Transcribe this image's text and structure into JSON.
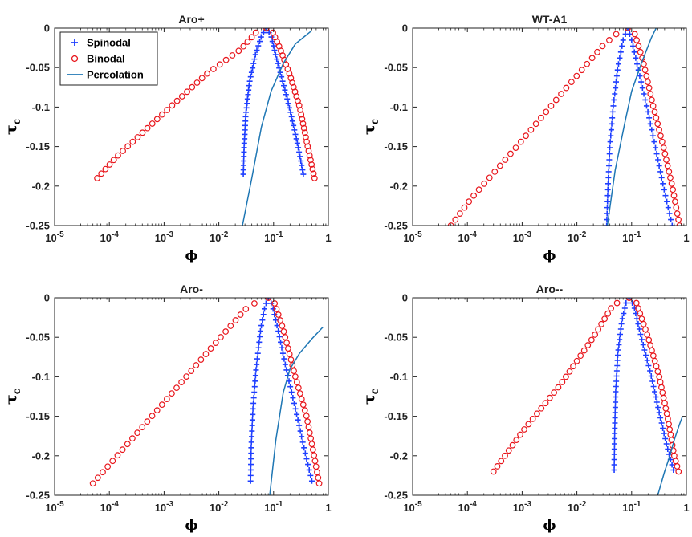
{
  "chart_data": [
    {
      "type": "scatter",
      "title": "Aro+",
      "xlabel": "ϕ",
      "ylabel": "τ",
      "ylabel_sub": "c",
      "xscale": "log",
      "xlim": [
        1e-05,
        1
      ],
      "ylim": [
        -0.25,
        0
      ],
      "xticks": [
        {
          "v": 1e-05,
          "base": "10",
          "exp": "-5"
        },
        {
          "v": 0.0001,
          "base": "10",
          "exp": "-4"
        },
        {
          "v": 0.001,
          "base": "10",
          "exp": "-3"
        },
        {
          "v": 0.01,
          "base": "10",
          "exp": "-2"
        },
        {
          "v": 0.1,
          "base": "10",
          "exp": "-1"
        },
        {
          "v": 1,
          "base": "1",
          "exp": ""
        }
      ],
      "yticks": [
        {
          "v": 0,
          "label": "0"
        },
        {
          "v": -0.05,
          "label": "-0.05"
        },
        {
          "v": -0.1,
          "label": "-0.1"
        },
        {
          "v": -0.15,
          "label": "-0.15"
        },
        {
          "v": -0.2,
          "label": "-0.2"
        },
        {
          "v": -0.25,
          "label": "-0.25"
        }
      ],
      "legend": {
        "placement": "top-left",
        "entries": [
          "Spinodal",
          "Binodal",
          "Percolation"
        ]
      },
      "series": [
        {
          "name": "Spinodal",
          "marker": "plus",
          "color": "#1f3fff",
          "tau_min": -0.185,
          "left": [
            [
              0.028,
              -0.185
            ],
            [
              0.029,
              -0.15
            ],
            [
              0.031,
              -0.11
            ],
            [
              0.036,
              -0.07
            ],
            [
              0.046,
              -0.035
            ],
            [
              0.06,
              -0.01
            ],
            [
              0.074,
              0
            ]
          ],
          "right": [
            [
              0.074,
              0
            ],
            [
              0.09,
              -0.01
            ],
            [
              0.11,
              -0.035
            ],
            [
              0.15,
              -0.07
            ],
            [
              0.21,
              -0.11
            ],
            [
              0.28,
              -0.15
            ],
            [
              0.35,
              -0.185
            ]
          ]
        },
        {
          "name": "Binodal",
          "marker": "circle",
          "color": "#e8161c",
          "tau_min": -0.19,
          "left": [
            [
              6e-05,
              -0.19
            ],
            [
              0.00014,
              -0.162
            ],
            [
              0.0009,
              -0.11
            ],
            [
              0.006,
              -0.058
            ],
            [
              0.025,
              -0.027
            ],
            [
              0.05,
              -0.004
            ],
            [
              0.074,
              0
            ]
          ],
          "right": [
            [
              0.074,
              0
            ],
            [
              0.095,
              -0.004
            ],
            [
              0.13,
              -0.025
            ],
            [
              0.2,
              -0.06
            ],
            [
              0.3,
              -0.1
            ],
            [
              0.42,
              -0.15
            ],
            [
              0.56,
              -0.19
            ]
          ]
        },
        {
          "name": "Percolation",
          "color": "#1f77b4",
          "points": [
            [
              0.027,
              -0.25
            ],
            [
              0.04,
              -0.19
            ],
            [
              0.06,
              -0.125
            ],
            [
              0.09,
              -0.08
            ],
            [
              0.15,
              -0.045
            ],
            [
              0.25,
              -0.02
            ],
            [
              0.5,
              -0.003
            ]
          ]
        }
      ]
    },
    {
      "type": "scatter",
      "title": "WT-A1",
      "xlabel": "ϕ",
      "ylabel": "τ",
      "ylabel_sub": "c",
      "xscale": "log",
      "xlim": [
        1e-05,
        1
      ],
      "ylim": [
        -0.25,
        0
      ],
      "xticks": [
        {
          "v": 1e-05,
          "base": "10",
          "exp": "-5"
        },
        {
          "v": 0.0001,
          "base": "10",
          "exp": "-4"
        },
        {
          "v": 0.001,
          "base": "10",
          "exp": "-3"
        },
        {
          "v": 0.01,
          "base": "10",
          "exp": "-2"
        },
        {
          "v": 0.1,
          "base": "10",
          "exp": "-1"
        },
        {
          "v": 1,
          "base": "1",
          "exp": ""
        }
      ],
      "yticks": [
        {
          "v": 0,
          "label": "0"
        },
        {
          "v": -0.05,
          "label": "-0.05"
        },
        {
          "v": -0.1,
          "label": "-0.1"
        },
        {
          "v": -0.15,
          "label": "-0.15"
        },
        {
          "v": -0.2,
          "label": "-0.2"
        },
        {
          "v": -0.25,
          "label": "-0.25"
        }
      ],
      "series": [
        {
          "name": "Spinodal",
          "marker": "plus",
          "color": "#1f3fff",
          "tau_min": -0.25,
          "left": [
            [
              0.035,
              -0.25
            ],
            [
              0.037,
              -0.2
            ],
            [
              0.04,
              -0.15
            ],
            [
              0.046,
              -0.1
            ],
            [
              0.056,
              -0.05
            ],
            [
              0.07,
              -0.015
            ],
            [
              0.085,
              0
            ]
          ],
          "right": [
            [
              0.085,
              0
            ],
            [
              0.1,
              -0.015
            ],
            [
              0.13,
              -0.05
            ],
            [
              0.19,
              -0.1
            ],
            [
              0.27,
              -0.15
            ],
            [
              0.38,
              -0.2
            ],
            [
              0.55,
              -0.25
            ]
          ]
        },
        {
          "name": "Binodal",
          "marker": "circle",
          "color": "#e8161c",
          "tau_min": -0.25,
          "left": [
            [
              5e-05,
              -0.25
            ],
            [
              0.00012,
              -0.215
            ],
            [
              0.0008,
              -0.15
            ],
            [
              0.006,
              -0.078
            ],
            [
              0.03,
              -0.022
            ],
            [
              0.06,
              -0.004
            ],
            [
              0.085,
              0
            ]
          ],
          "right": [
            [
              0.085,
              0
            ],
            [
              0.11,
              -0.004
            ],
            [
              0.16,
              -0.04
            ],
            [
              0.25,
              -0.1
            ],
            [
              0.38,
              -0.15
            ],
            [
              0.55,
              -0.2
            ],
            [
              0.75,
              -0.25
            ]
          ]
        },
        {
          "name": "Percolation",
          "color": "#1f77b4",
          "points": [
            [
              0.036,
              -0.25
            ],
            [
              0.05,
              -0.18
            ],
            [
              0.075,
              -0.12
            ],
            [
              0.1,
              -0.08
            ],
            [
              0.15,
              -0.045
            ],
            [
              0.23,
              -0.012
            ],
            [
              0.28,
              0
            ]
          ]
        }
      ]
    },
    {
      "type": "scatter",
      "title": "Aro-",
      "xlabel": "ϕ",
      "ylabel": "τ",
      "ylabel_sub": "c",
      "xscale": "log",
      "xlim": [
        1e-05,
        1
      ],
      "ylim": [
        -0.25,
        0
      ],
      "xticks": [
        {
          "v": 1e-05,
          "base": "10",
          "exp": "-5"
        },
        {
          "v": 0.0001,
          "base": "10",
          "exp": "-4"
        },
        {
          "v": 0.001,
          "base": "10",
          "exp": "-3"
        },
        {
          "v": 0.01,
          "base": "10",
          "exp": "-2"
        },
        {
          "v": 0.1,
          "base": "10",
          "exp": "-1"
        },
        {
          "v": 1,
          "base": "1",
          "exp": ""
        }
      ],
      "yticks": [
        {
          "v": 0,
          "label": "0"
        },
        {
          "v": -0.05,
          "label": "-0.05"
        },
        {
          "v": -0.1,
          "label": "-0.1"
        },
        {
          "v": -0.15,
          "label": "-0.15"
        },
        {
          "v": -0.2,
          "label": "-0.2"
        },
        {
          "v": -0.25,
          "label": "-0.25"
        }
      ],
      "series": [
        {
          "name": "Spinodal",
          "marker": "plus",
          "color": "#1f3fff",
          "tau_min": -0.232,
          "left": [
            [
              0.038,
              -0.232
            ],
            [
              0.039,
              -0.19
            ],
            [
              0.042,
              -0.14
            ],
            [
              0.048,
              -0.09
            ],
            [
              0.058,
              -0.04
            ],
            [
              0.07,
              -0.01
            ],
            [
              0.08,
              0
            ]
          ],
          "right": [
            [
              0.08,
              0
            ],
            [
              0.095,
              -0.01
            ],
            [
              0.12,
              -0.04
            ],
            [
              0.17,
              -0.09
            ],
            [
              0.25,
              -0.14
            ],
            [
              0.36,
              -0.19
            ],
            [
              0.5,
              -0.232
            ]
          ]
        },
        {
          "name": "Binodal",
          "marker": "circle",
          "color": "#e8161c",
          "tau_min": -0.235,
          "left": [
            [
              5e-05,
              -0.235
            ],
            [
              0.00012,
              -0.205
            ],
            [
              0.0008,
              -0.14
            ],
            [
              0.006,
              -0.07
            ],
            [
              0.03,
              -0.015
            ],
            [
              0.055,
              -0.003
            ],
            [
              0.08,
              0
            ]
          ],
          "right": [
            [
              0.08,
              0
            ],
            [
              0.1,
              -0.003
            ],
            [
              0.15,
              -0.04
            ],
            [
              0.25,
              -0.1
            ],
            [
              0.4,
              -0.15
            ],
            [
              0.55,
              -0.2
            ],
            [
              0.68,
              -0.235
            ]
          ]
        },
        {
          "name": "Percolation",
          "color": "#1f77b4",
          "points": [
            [
              0.085,
              -0.25
            ],
            [
              0.11,
              -0.18
            ],
            [
              0.15,
              -0.12
            ],
            [
              0.2,
              -0.09
            ],
            [
              0.3,
              -0.07
            ],
            [
              0.5,
              -0.052
            ],
            [
              0.8,
              -0.037
            ]
          ]
        }
      ]
    },
    {
      "type": "scatter",
      "title": "Aro--",
      "xlabel": "ϕ",
      "ylabel": "τ",
      "ylabel_sub": "c",
      "xscale": "log",
      "xlim": [
        1e-05,
        1
      ],
      "ylim": [
        -0.25,
        0
      ],
      "xticks": [
        {
          "v": 1e-05,
          "base": "10",
          "exp": "-5"
        },
        {
          "v": 0.0001,
          "base": "10",
          "exp": "-4"
        },
        {
          "v": 0.001,
          "base": "10",
          "exp": "-3"
        },
        {
          "v": 0.01,
          "base": "10",
          "exp": "-2"
        },
        {
          "v": 0.1,
          "base": "10",
          "exp": "-1"
        },
        {
          "v": 1,
          "base": "1",
          "exp": ""
        }
      ],
      "yticks": [
        {
          "v": 0,
          "label": "0"
        },
        {
          "v": -0.05,
          "label": "-0.05"
        },
        {
          "v": -0.1,
          "label": "-0.1"
        },
        {
          "v": -0.15,
          "label": "-0.15"
        },
        {
          "v": -0.2,
          "label": "-0.2"
        },
        {
          "v": -0.25,
          "label": "-0.25"
        }
      ],
      "series": [
        {
          "name": "Spinodal",
          "marker": "plus",
          "color": "#1f3fff",
          "tau_min": -0.218,
          "left": [
            [
              0.048,
              -0.218
            ],
            [
              0.049,
              -0.17
            ],
            [
              0.051,
              -0.12
            ],
            [
              0.056,
              -0.07
            ],
            [
              0.066,
              -0.03
            ],
            [
              0.08,
              -0.005
            ],
            [
              0.09,
              0
            ]
          ],
          "right": [
            [
              0.09,
              0
            ],
            [
              0.11,
              -0.01
            ],
            [
              0.15,
              -0.05
            ],
            [
              0.23,
              -0.1
            ],
            [
              0.33,
              -0.15
            ],
            [
              0.45,
              -0.19
            ],
            [
              0.58,
              -0.218
            ]
          ]
        },
        {
          "name": "Binodal",
          "marker": "circle",
          "color": "#e8161c",
          "tau_min": -0.22,
          "left": [
            [
              0.0003,
              -0.22
            ],
            [
              0.001,
              -0.17
            ],
            [
              0.005,
              -0.11
            ],
            [
              0.02,
              -0.05
            ],
            [
              0.045,
              -0.01
            ],
            [
              0.07,
              -0.002
            ],
            [
              0.09,
              0
            ]
          ],
          "right": [
            [
              0.09,
              0
            ],
            [
              0.12,
              -0.005
            ],
            [
              0.2,
              -0.05
            ],
            [
              0.32,
              -0.1
            ],
            [
              0.45,
              -0.15
            ],
            [
              0.6,
              -0.2
            ],
            [
              0.72,
              -0.22
            ]
          ]
        },
        {
          "name": "Percolation",
          "color": "#1f77b4",
          "points": [
            [
              0.3,
              -0.25
            ],
            [
              0.4,
              -0.22
            ],
            [
              0.5,
              -0.2
            ],
            [
              0.6,
              -0.18
            ],
            [
              0.75,
              -0.16
            ],
            [
              0.85,
              -0.15
            ]
          ]
        }
      ]
    }
  ]
}
